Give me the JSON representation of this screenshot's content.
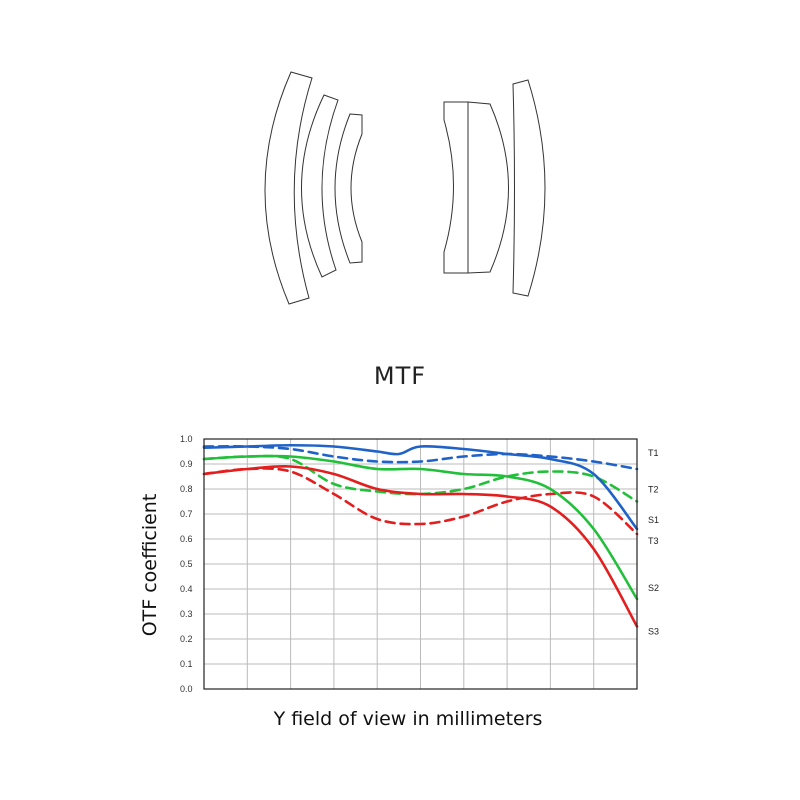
{
  "title": "MTF",
  "chart_data": {
    "type": "line",
    "xlabel": "Y field of view in millimeters",
    "ylabel": "OTF coefficient",
    "ylim": [
      0,
      1
    ],
    "yticks": [
      "0.0",
      "0.1",
      "0.2",
      "0.3",
      "0.4",
      "0.5",
      "0.6",
      "0.7",
      "0.8",
      "0.9",
      "1.0"
    ],
    "xlim": [
      0,
      10
    ],
    "x_tick_labels": [],
    "grid": true,
    "series": [
      {
        "name": "T1",
        "color": "#1f62c8",
        "style": "dashed",
        "x": [
          0,
          1,
          2,
          3,
          4,
          5,
          6,
          7,
          8,
          9,
          10
        ],
        "y": [
          0.97,
          0.97,
          0.96,
          0.93,
          0.91,
          0.91,
          0.93,
          0.94,
          0.93,
          0.91,
          0.88
        ]
      },
      {
        "name": "S1",
        "color": "#1f62c8",
        "style": "solid",
        "x": [
          0,
          1,
          2,
          3,
          4,
          4.5,
          5,
          6,
          7,
          8,
          9,
          10
        ],
        "y": [
          0.965,
          0.97,
          0.975,
          0.97,
          0.95,
          0.94,
          0.97,
          0.96,
          0.94,
          0.92,
          0.86,
          0.64
        ]
      },
      {
        "name": "T2",
        "color": "#22c03a",
        "style": "dashed",
        "x": [
          0,
          1,
          2,
          3,
          4,
          5,
          6,
          7,
          8,
          9,
          10
        ],
        "y": [
          0.92,
          0.93,
          0.92,
          0.82,
          0.79,
          0.78,
          0.8,
          0.85,
          0.87,
          0.85,
          0.75
        ]
      },
      {
        "name": "S2",
        "color": "#22c03a",
        "style": "solid",
        "x": [
          0,
          1,
          2,
          3,
          4,
          5,
          6,
          7,
          8,
          9,
          10
        ],
        "y": [
          0.92,
          0.93,
          0.93,
          0.91,
          0.88,
          0.88,
          0.86,
          0.85,
          0.8,
          0.64,
          0.36
        ]
      },
      {
        "name": "T3",
        "color": "#e31e1e",
        "style": "dashed",
        "x": [
          0,
          1,
          2,
          3,
          4,
          5,
          6,
          7,
          8,
          9,
          10
        ],
        "y": [
          0.86,
          0.88,
          0.87,
          0.78,
          0.68,
          0.66,
          0.69,
          0.75,
          0.78,
          0.77,
          0.62
        ]
      },
      {
        "name": "S3",
        "color": "#e31e1e",
        "style": "solid",
        "x": [
          0,
          1,
          2,
          3,
          4,
          5,
          6,
          7,
          8,
          9,
          10
        ],
        "y": [
          0.86,
          0.88,
          0.89,
          0.86,
          0.8,
          0.78,
          0.78,
          0.77,
          0.73,
          0.56,
          0.25
        ]
      }
    ],
    "legend_placement": "right-end-labels"
  }
}
